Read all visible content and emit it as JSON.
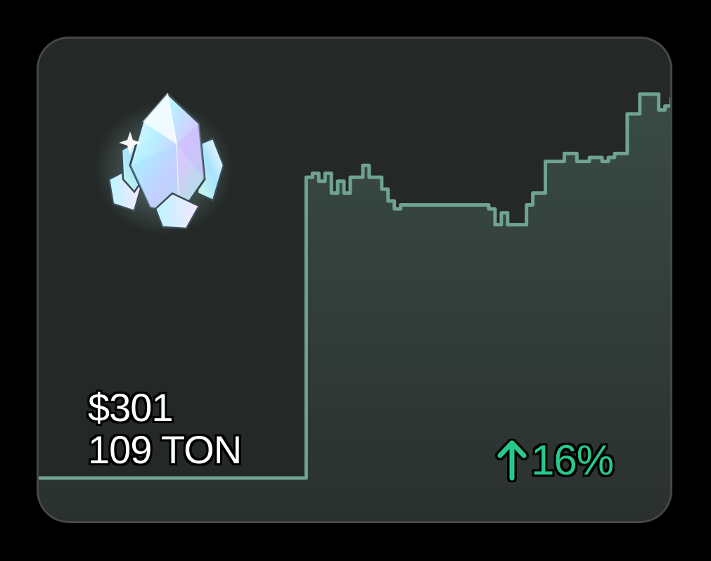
{
  "price": {
    "usd": "$301",
    "ton": "109 TON"
  },
  "change": {
    "percent": "16%",
    "direction": "up",
    "icon": "arrow-up-icon",
    "color": "#27c98a"
  },
  "item": {
    "icon": "crystal-gem-icon"
  },
  "colors": {
    "card_background": "#242827",
    "line": "#6fa391",
    "fill_top": "#3a4b45"
  },
  "chart_data": {
    "type": "area",
    "ylim": [
      0,
      100
    ],
    "values": [
      0,
      0,
      0,
      0,
      0,
      0,
      0,
      0,
      0,
      0,
      0,
      0,
      0,
      0,
      0,
      0,
      0,
      0,
      0,
      0,
      0,
      0,
      0,
      0,
      0,
      0,
      0,
      0,
      0,
      0,
      0,
      0,
      0,
      0,
      0,
      0,
      0,
      0,
      0,
      0,
      0,
      0,
      0,
      76,
      77,
      75,
      77,
      72,
      75,
      72,
      76,
      76,
      79,
      76,
      76,
      73,
      70,
      68,
      69,
      69,
      69,
      69,
      69,
      69,
      69,
      69,
      69,
      69,
      69,
      69,
      69,
      69,
      68,
      64,
      67,
      64,
      64,
      64,
      69,
      72,
      72,
      80,
      80,
      80,
      82,
      82,
      80,
      80,
      81,
      81,
      80,
      81,
      82,
      82,
      92,
      92,
      97,
      97,
      97,
      93,
      94,
      96
    ]
  }
}
